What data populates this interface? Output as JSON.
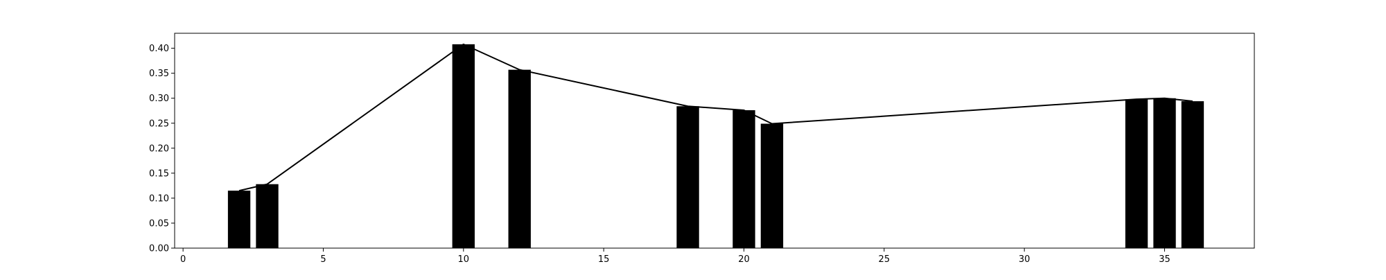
{
  "chart_data": {
    "type": "bar",
    "title": "",
    "xlabel": "",
    "ylabel": "",
    "xlim": [
      -0.3,
      38.2
    ],
    "ylim": [
      0,
      0.43
    ],
    "xticks": [
      0,
      5,
      10,
      15,
      20,
      25,
      30,
      35
    ],
    "xtick_labels": [
      "0",
      "5",
      "10",
      "15",
      "20",
      "25",
      "30",
      "35"
    ],
    "yticks": [
      0,
      0.05,
      0.1,
      0.15,
      0.2,
      0.25,
      0.3,
      0.35,
      0.4
    ],
    "ytick_labels": [
      "0.00",
      "0.05",
      "0.10",
      "0.15",
      "0.20",
      "0.25",
      "0.30",
      "0.35",
      "0.40"
    ],
    "bar_width": 0.8,
    "grid": false,
    "legend": "none",
    "colors": {
      "bar": "#000000",
      "line": "#000000",
      "axes": "#000000",
      "background": "#ffffff"
    },
    "series": [
      {
        "type": "bar",
        "x": [
          2,
          3,
          10,
          12,
          18,
          20,
          21,
          34,
          35,
          36
        ],
        "values": [
          0.115,
          0.128,
          0.408,
          0.357,
          0.284,
          0.276,
          0.249,
          0.298,
          0.3,
          0.294
        ]
      },
      {
        "type": "line",
        "x": [
          2,
          3,
          10,
          12,
          18,
          20,
          21,
          34,
          35,
          36
        ],
        "values": [
          0.115,
          0.128,
          0.408,
          0.357,
          0.284,
          0.276,
          0.249,
          0.298,
          0.3,
          0.294
        ]
      }
    ]
  }
}
